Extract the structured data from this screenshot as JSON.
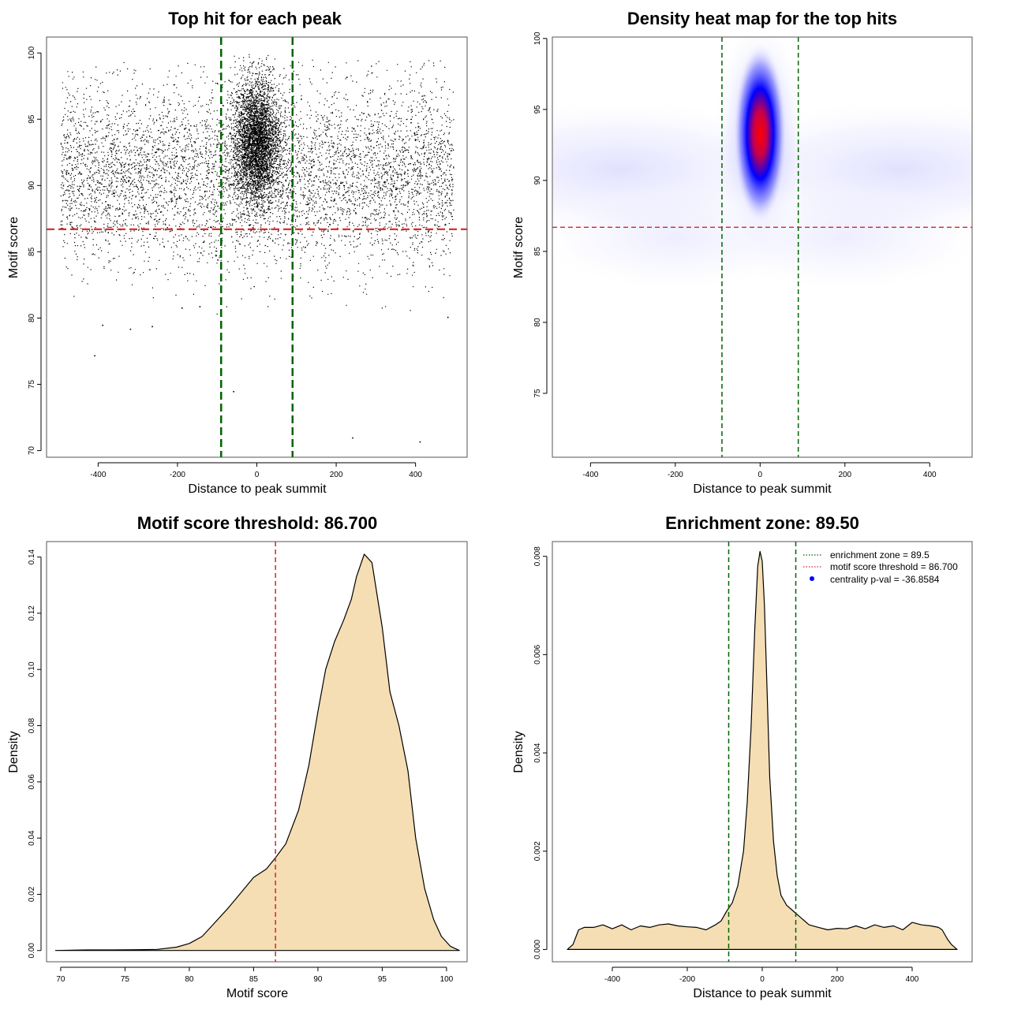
{
  "chart_data": [
    {
      "id": "scatter",
      "type": "scatter",
      "title": "Top hit for each peak",
      "xlabel": "Distance to peak summit",
      "ylabel": "Motif score",
      "xlim": [
        -530,
        530
      ],
      "ylim": [
        69.5,
        101.2
      ],
      "xticks": [
        -400,
        -200,
        0,
        200,
        400
      ],
      "xtick_labels": [
        "-400",
        "-200",
        "0",
        "200",
        "400"
      ],
      "yticks": [
        70,
        75,
        80,
        85,
        90,
        95,
        100
      ],
      "ytick_labels": [
        "70",
        "75",
        "80",
        "85",
        "90",
        "95",
        "100"
      ],
      "background": {
        "x_range": [
          -495,
          495
        ],
        "score_mean": 90.8,
        "score_sd": 3.3
      },
      "central_cluster": {
        "x_mean": 0,
        "x_sd": 28,
        "score_mean": 93.3,
        "score_sd": 2.3
      },
      "outlier_points": [
        {
          "x": -410,
          "y": 77.2
        },
        {
          "x": -390,
          "y": 79.5
        },
        {
          "x": -320,
          "y": 79.2
        },
        {
          "x": -265,
          "y": 79.4
        },
        {
          "x": -190,
          "y": 80.8
        },
        {
          "x": -145,
          "y": 80.9
        },
        {
          "x": -60,
          "y": 74.5
        },
        {
          "x": 240,
          "y": 71.0
        },
        {
          "x": 410,
          "y": 70.7
        },
        {
          "x": 480,
          "y": 80.1
        }
      ],
      "vlines": [
        -90,
        90
      ],
      "hline": 86.7,
      "grid": false,
      "legend": "none",
      "colors": {
        "points": "#000000",
        "vline": "#006400",
        "hline": "#dd2222"
      }
    },
    {
      "id": "heatmap",
      "type": "heatmap",
      "title": "Density heat map for the top hits",
      "xlabel": "Distance to peak summit",
      "ylabel": "Motif score",
      "xlim": [
        -490,
        500
      ],
      "ylim": [
        70.5,
        100.1
      ],
      "xticks": [
        -400,
        -200,
        0,
        200,
        400
      ],
      "xtick_labels": [
        "-400",
        "-200",
        "0",
        "200",
        "400"
      ],
      "yticks": [
        75,
        80,
        85,
        90,
        95,
        100
      ],
      "ytick_labels": [
        "75",
        "80",
        "85",
        "90",
        "95",
        "100"
      ],
      "hotspot": {
        "x": 0,
        "y": 93.3
      },
      "vlines": [
        -90,
        90
      ],
      "hline": 86.7,
      "grid": false,
      "legend": "none",
      "colors": {
        "low": "#ffffff",
        "mid": "#0000ff",
        "high": "#ff0000",
        "vline": "#006400",
        "hline": "#dd2222"
      }
    },
    {
      "id": "score-density",
      "type": "area",
      "title": "Motif score threshold: 86.700",
      "xlabel": "Motif score",
      "ylabel": "Density",
      "xlim": [
        68.9,
        101.6
      ],
      "ylim": [
        -0.004,
        0.1455
      ],
      "xticks": [
        70,
        75,
        80,
        85,
        90,
        95,
        100
      ],
      "xtick_labels": [
        "70",
        "75",
        "80",
        "85",
        "90",
        "95",
        "100"
      ],
      "yticks": [
        0,
        0.02,
        0.04,
        0.06,
        0.08,
        0.1,
        0.12,
        0.14
      ],
      "ytick_labels": [
        "0.00",
        "0.02",
        "0.04",
        "0.06",
        "0.08",
        "0.10",
        "0.12",
        "0.14"
      ],
      "x": [
        69.6,
        72,
        74,
        76,
        77.5,
        79,
        80,
        81,
        82,
        83,
        84,
        85,
        86,
        86.7,
        87.5,
        88.5,
        89.3,
        90,
        90.6,
        91.3,
        92,
        92.6,
        93,
        93.6,
        94.2,
        95,
        95.6,
        96.3,
        97,
        97.6,
        98.3,
        99,
        99.6,
        100.3,
        101
      ],
      "y": [
        0,
        0.0002,
        0.0002,
        0.0003,
        0.0004,
        0.0012,
        0.0025,
        0.005,
        0.01,
        0.015,
        0.0205,
        0.026,
        0.029,
        0.033,
        0.038,
        0.05,
        0.066,
        0.085,
        0.1,
        0.11,
        0.1175,
        0.125,
        0.133,
        0.141,
        0.138,
        0.115,
        0.092,
        0.08,
        0.064,
        0.04,
        0.022,
        0.011,
        0.005,
        0.0015,
        0
      ],
      "vlines": [
        86.7
      ],
      "grid": false,
      "legend": "none",
      "colors": {
        "fill": "#f5deb3",
        "line": "#000000",
        "vline": "#dd2222"
      }
    },
    {
      "id": "distance-density",
      "type": "area",
      "title": "Enrichment zone: 89.50",
      "xlabel": "Distance to peak summit",
      "ylabel": "Density",
      "xlim": [
        -560,
        560
      ],
      "ylim": [
        -0.00025,
        0.0083
      ],
      "xticks": [
        -400,
        -200,
        0,
        200,
        400
      ],
      "xtick_labels": [
        "-400",
        "-200",
        "0",
        "200",
        "400"
      ],
      "yticks": [
        0,
        0.002,
        0.004,
        0.006,
        0.008
      ],
      "ytick_labels": [
        "0.000",
        "0.002",
        "0.004",
        "0.006",
        "0.008"
      ],
      "x": [
        -520,
        -505,
        -490,
        -475,
        -450,
        -425,
        -400,
        -375,
        -350,
        -325,
        -300,
        -275,
        -250,
        -225,
        -200,
        -175,
        -150,
        -125,
        -110,
        -95,
        -80,
        -65,
        -50,
        -40,
        -30,
        -20,
        -12,
        -6,
        0,
        6,
        12,
        20,
        30,
        40,
        50,
        65,
        80,
        95,
        110,
        125,
        150,
        175,
        200,
        225,
        250,
        275,
        300,
        325,
        350,
        375,
        400,
        425,
        450,
        470,
        480,
        495,
        505,
        520
      ],
      "y": [
        0,
        0.0001,
        0.0004,
        0.00045,
        0.00045,
        0.0005,
        0.00042,
        0.0005,
        0.0004,
        0.00048,
        0.00045,
        0.0005,
        0.00052,
        0.00048,
        0.00046,
        0.00045,
        0.0004,
        0.0005,
        0.00058,
        0.00078,
        0.00095,
        0.0013,
        0.002,
        0.003,
        0.0045,
        0.0065,
        0.0078,
        0.0081,
        0.0079,
        0.007,
        0.0055,
        0.0035,
        0.0022,
        0.0015,
        0.0011,
        0.0009,
        0.0008,
        0.0007,
        0.0006,
        0.0005,
        0.00045,
        0.0004,
        0.00043,
        0.00042,
        0.00048,
        0.00042,
        0.0005,
        0.00045,
        0.00048,
        0.0004,
        0.00055,
        0.0005,
        0.00048,
        0.00045,
        0.0004,
        0.0002,
        0.0001,
        0
      ],
      "vlines": [
        -89.5,
        89.5
      ],
      "grid": false,
      "legend": "top-right",
      "legend_items": [
        {
          "label": "enrichment zone = 89.5",
          "style": "dotted-line",
          "color": "#006400"
        },
        {
          "label": "motif score threshold = 86.700",
          "style": "dotted-line",
          "color": "#dd2222"
        },
        {
          "label": "centrality p-val = -36.8584",
          "style": "dot",
          "color": "#0000ff"
        }
      ],
      "colors": {
        "fill": "#f5deb3",
        "line": "#000000",
        "vline": "#006400"
      }
    }
  ]
}
